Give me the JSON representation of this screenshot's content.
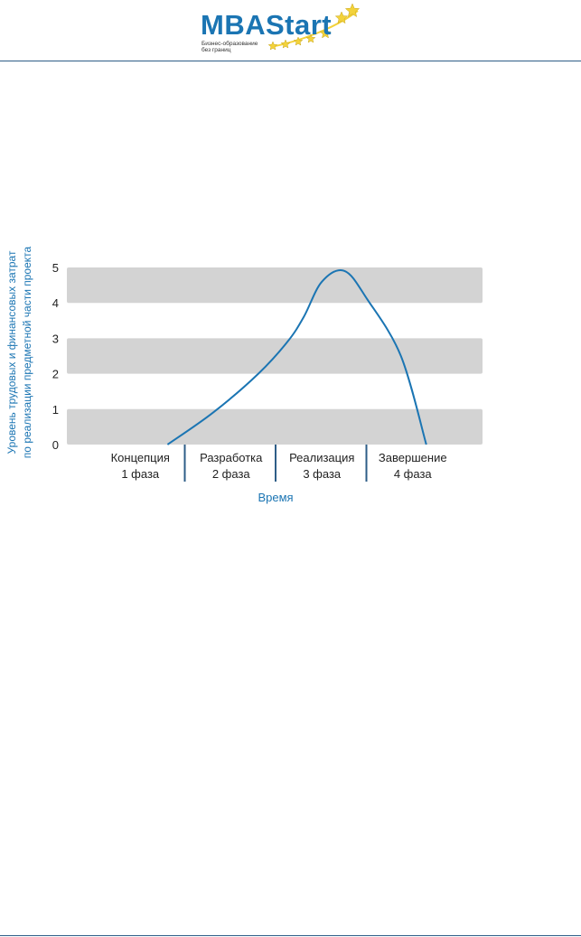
{
  "header": {
    "logo": {
      "word1": "MBA",
      "word2": "Start",
      "tagline_line1": "Бизнес-образование",
      "tagline_line2": "без границ"
    }
  },
  "colors": {
    "brand_blue": "#1b75b3",
    "rule_blue": "#2e5d87",
    "band_gray": "#d3d3d3",
    "curve_blue": "#1b75b3",
    "star_yellow": "#f3d23a"
  },
  "chart_data": {
    "type": "line",
    "title": "",
    "xlabel": "Время",
    "ylabel_line1": "Уровень трудовых и финансовых затрат",
    "ylabel_line2": "по реализации предметной части проекта",
    "ylim": [
      0,
      5
    ],
    "yticks": [
      "0",
      "1",
      "2",
      "3",
      "4",
      "5"
    ],
    "banded_grid": true,
    "phases": [
      {
        "name": "Концепция",
        "label": "1 фаза"
      },
      {
        "name": "Разработка",
        "label": "2 фаза"
      },
      {
        "name": "Реализация",
        "label": "3 фаза"
      },
      {
        "name": "Завершение",
        "label": "4 фаза"
      }
    ],
    "xlim": [
      0,
      4
    ],
    "series": [
      {
        "x": [
          0.8,
          1.3,
          1.8,
          2.12,
          2.3,
          2.5,
          2.75,
          3.0,
          3.37,
          3.65
        ],
        "y": [
          0.0,
          0.9,
          2.0,
          2.9,
          3.6,
          4.6,
          4.9,
          4.1,
          2.5,
          0.0
        ]
      }
    ]
  }
}
